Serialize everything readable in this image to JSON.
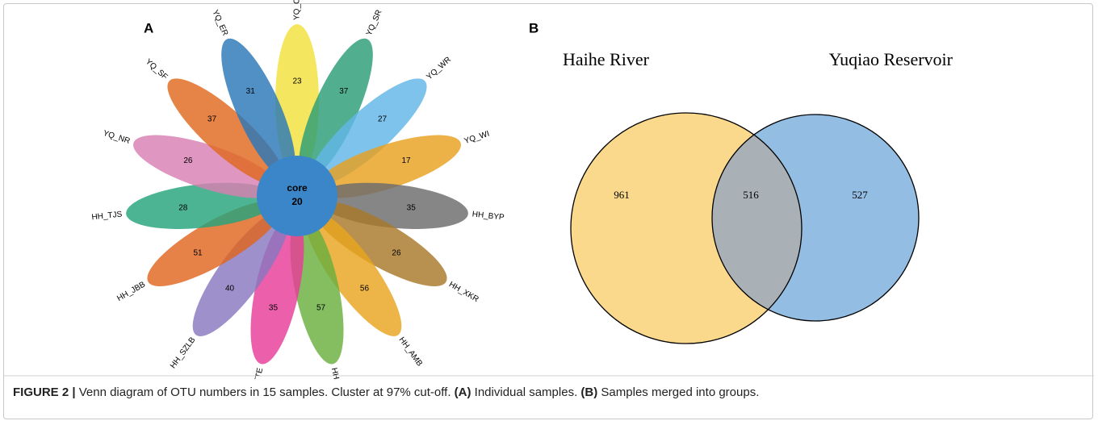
{
  "panels": {
    "A": {
      "label": "A",
      "core": {
        "label": "core",
        "value": 20,
        "color": "#3a86c8"
      },
      "petals": [
        {
          "name": "YQ_CR",
          "value": 23,
          "color": "#f2e23c"
        },
        {
          "name": "YQ_SR",
          "value": 37,
          "color": "#2b9e76"
        },
        {
          "name": "YQ_WR",
          "value": 27,
          "color": "#62b6e8"
        },
        {
          "name": "YQ_WI",
          "value": 17,
          "color": "#e8a11e"
        },
        {
          "name": "HH_BYP",
          "value": 35,
          "color": "#6b6b6b"
        },
        {
          "name": "HH_XKR",
          "value": 26,
          "color": "#a8792a"
        },
        {
          "name": "HH_AMB",
          "value": 56,
          "color": "#e9a51f"
        },
        {
          "name": "HH_ZYHSR",
          "value": 57,
          "color": "#6aaf3e"
        },
        {
          "name": "HH_TTE",
          "value": 35,
          "color": "#e83c98"
        },
        {
          "name": "HH_SZLB",
          "value": 40,
          "color": "#8878bf"
        },
        {
          "name": "HH_JBB",
          "value": 51,
          "color": "#e0651e"
        },
        {
          "name": "HH_TJS",
          "value": 28,
          "color": "#26a37b"
        },
        {
          "name": "YQ_NR",
          "value": 26,
          "color": "#d87fb2"
        },
        {
          "name": "YQ_SF",
          "value": 37,
          "color": "#e0691f"
        },
        {
          "name": "YQ_ER",
          "value": 31,
          "color": "#2b78b8"
        }
      ]
    },
    "B": {
      "label": "B",
      "sets": [
        {
          "name": "Haihe River",
          "only": 961,
          "color": "#fad98c"
        },
        {
          "name": "Yuqiao Reservoir",
          "only": 527,
          "color": "#94bde3"
        }
      ],
      "overlap": 516,
      "overlap_color": "#a9b1b7"
    }
  },
  "caption": {
    "figure": "FIGURE 2 |",
    "text": "Venn diagram of OTU numbers in 15 samples. Cluster at 97% cut-off.",
    "a": "(A)",
    "a_text": "Individual samples.",
    "b": "(B)",
    "b_text": "Samples merged into groups."
  }
}
